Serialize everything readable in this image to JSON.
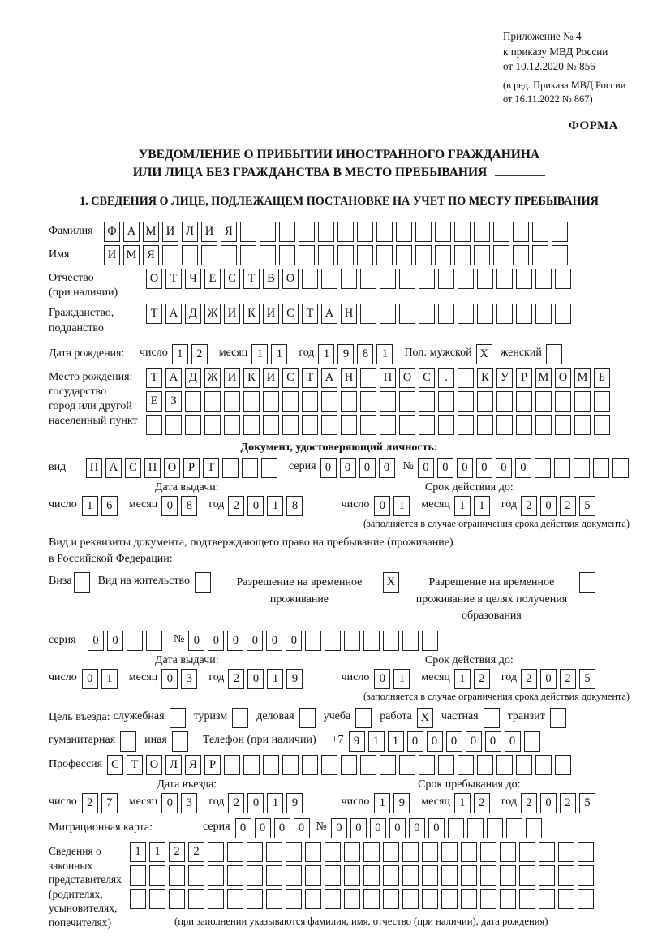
{
  "colors": {
    "ink": "#111111",
    "box_border": "#222222"
  },
  "header": {
    "ref_lines": [
      "Приложение № 4",
      "к приказу МВД России",
      "от 10.12.2020 № 856"
    ],
    "ref_note_lines": [
      "(в ред. Приказа МВД России",
      "от 16.11.2022 № 867)"
    ],
    "forma": "ФОРМА"
  },
  "title": {
    "line1": "УВЕДОМЛЕНИЕ О ПРИБЫТИИ ИНОСТРАННОГО ГРАЖДАНИНА",
    "line2": "ИЛИ ЛИЦА БЕЗ ГРАЖДАНСТВА В МЕСТО ПРЕБЫВАНИЯ"
  },
  "section1": {
    "heading": "1. СВЕДЕНИЯ О ЛИЦЕ, ПОДЛЕЖАЩЕМ ПОСТАНОВКЕ НА УЧЕТ ПО МЕСТУ ПРЕБЫВАНИЯ"
  },
  "common": {
    "day": "число",
    "month": "месяц",
    "year": "год",
    "series": "серия",
    "number": "№"
  },
  "fields": {
    "surname": {
      "label": "Фамилия",
      "value": "ФАМИЛИЯ",
      "count": 24
    },
    "name": {
      "label": "Имя",
      "value": "ИМЯ",
      "count": 24
    },
    "patronymic": {
      "label": "Отчество",
      "label2": "(при наличии)",
      "value": "ОТЧЕСТВО",
      "count": 22
    },
    "citizenship": {
      "label": "Гражданство,",
      "label2": "подданство",
      "value": "ТАДЖИКИСТАН",
      "count": 22
    },
    "birth_date": {
      "label": "Дата рождения:",
      "day": {
        "value": "12",
        "count": 2
      },
      "month": {
        "value": "11",
        "count": 2
      },
      "year": {
        "value": "1981",
        "count": 4
      }
    },
    "gender": {
      "male_label": "Пол: мужской",
      "male": {
        "checked": true
      },
      "female_label": "женский",
      "female": {
        "checked": false
      }
    },
    "birth_place": {
      "label_lines": [
        "Место рождения:",
        "государство",
        "город или другой",
        "населенный пункт"
      ],
      "row1": {
        "value": "ТАДЖИКИСТАН ПОС. КУРМОМБ",
        "count": 24
      },
      "row2": {
        "value": "ЕЗ",
        "count": 24
      },
      "row3": {
        "value": "",
        "count": 24
      }
    },
    "identity_doc": {
      "heading": "Документ, удостоверяющий личность:",
      "type_label": "вид",
      "type": {
        "value": "ПАСПОРТ",
        "count": 10
      },
      "series": {
        "value": "0000",
        "count": 4
      },
      "number": {
        "value": "000000",
        "count": 11
      },
      "issue_heading": "Дата выдачи:",
      "issue": {
        "day": {
          "value": "16",
          "count": 2
        },
        "month": {
          "value": "08",
          "count": 2
        },
        "year": {
          "value": "2018",
          "count": 4
        }
      },
      "valid_heading": "Срок действия до:",
      "valid": {
        "day": {
          "value": "01",
          "count": 2
        },
        "month": {
          "value": "11",
          "count": 2
        },
        "year": {
          "value": "2025",
          "count": 4
        }
      },
      "valid_note": "(заполняется в случае ограничения срока действия документа)"
    },
    "residence_doc": {
      "intro_line1": "Вид и реквизиты документа, подтверждающего право на пребывание (проживание)",
      "intro_line2": "в Российской Федерации:",
      "options": [
        {
          "label": "Виза",
          "checked": false
        },
        {
          "label": "Вид на жительство",
          "checked": false
        },
        {
          "label": "Разрешение на временное проживание",
          "checked": true
        },
        {
          "label": "Разрешение на временное проживание в целях получения образования",
          "checked": false
        }
      ],
      "series": {
        "value": "00",
        "count": 4
      },
      "number": {
        "value": "000000",
        "count": 13
      },
      "issue_heading": "Дата выдачи:",
      "issue": {
        "day": {
          "value": "01",
          "count": 2
        },
        "month": {
          "value": "03",
          "count": 2
        },
        "year": {
          "value": "2019",
          "count": 4
        }
      },
      "valid_heading": "Срок действия до:",
      "valid": {
        "day": {
          "value": "01",
          "count": 2
        },
        "month": {
          "value": "12",
          "count": 2
        },
        "year": {
          "value": "2025",
          "count": 4
        }
      },
      "valid_note": "(заполняется в случае ограничения срока действия документа)"
    },
    "purpose": {
      "label": "Цель въезда:",
      "options": [
        {
          "label": "служебная",
          "checked": false
        },
        {
          "label": "туризм",
          "checked": false
        },
        {
          "label": "деловая",
          "checked": false
        },
        {
          "label": "учеба",
          "checked": false
        },
        {
          "label": "работа",
          "checked": true
        },
        {
          "label": "частная",
          "checked": false
        },
        {
          "label": "транзит",
          "checked": false
        },
        {
          "label": "гуманитарная",
          "checked": false
        },
        {
          "label": "иная",
          "checked": false
        }
      ]
    },
    "phone": {
      "label": "Телефон (при наличии)",
      "prefix": "+7",
      "number": {
        "value": "911000000",
        "count": 10
      }
    },
    "profession": {
      "label": "Профессия",
      "value": "СТОЛЯР",
      "count": 24
    },
    "entry": {
      "issue_heading": "Дата въезда:",
      "issue": {
        "day": {
          "value": "27",
          "count": 2
        },
        "month": {
          "value": "03",
          "count": 2
        },
        "year": {
          "value": "2019",
          "count": 4
        }
      },
      "valid_heading": "Срок пребывания до:",
      "valid": {
        "day": {
          "value": "19",
          "count": 2
        },
        "month": {
          "value": "12",
          "count": 2
        },
        "year": {
          "value": "2025",
          "count": 4
        }
      }
    },
    "migration_card": {
      "label": "Миграционная карта:",
      "series": {
        "value": "0000",
        "count": 4
      },
      "number": {
        "value": "000000",
        "count": 11
      }
    },
    "representatives": {
      "label_lines": [
        "Сведения о",
        "законных",
        "представителях",
        "(родителях,",
        "усыновителях,",
        "попечителях)"
      ],
      "rows": [
        {
          "value": "1122",
          "count": 24
        },
        {
          "value": "",
          "count": 24
        },
        {
          "value": "",
          "count": 24
        }
      ],
      "note": "(при заполнении указываются фамилия, имя, отчество (при наличии), дата рождения)"
    }
  }
}
